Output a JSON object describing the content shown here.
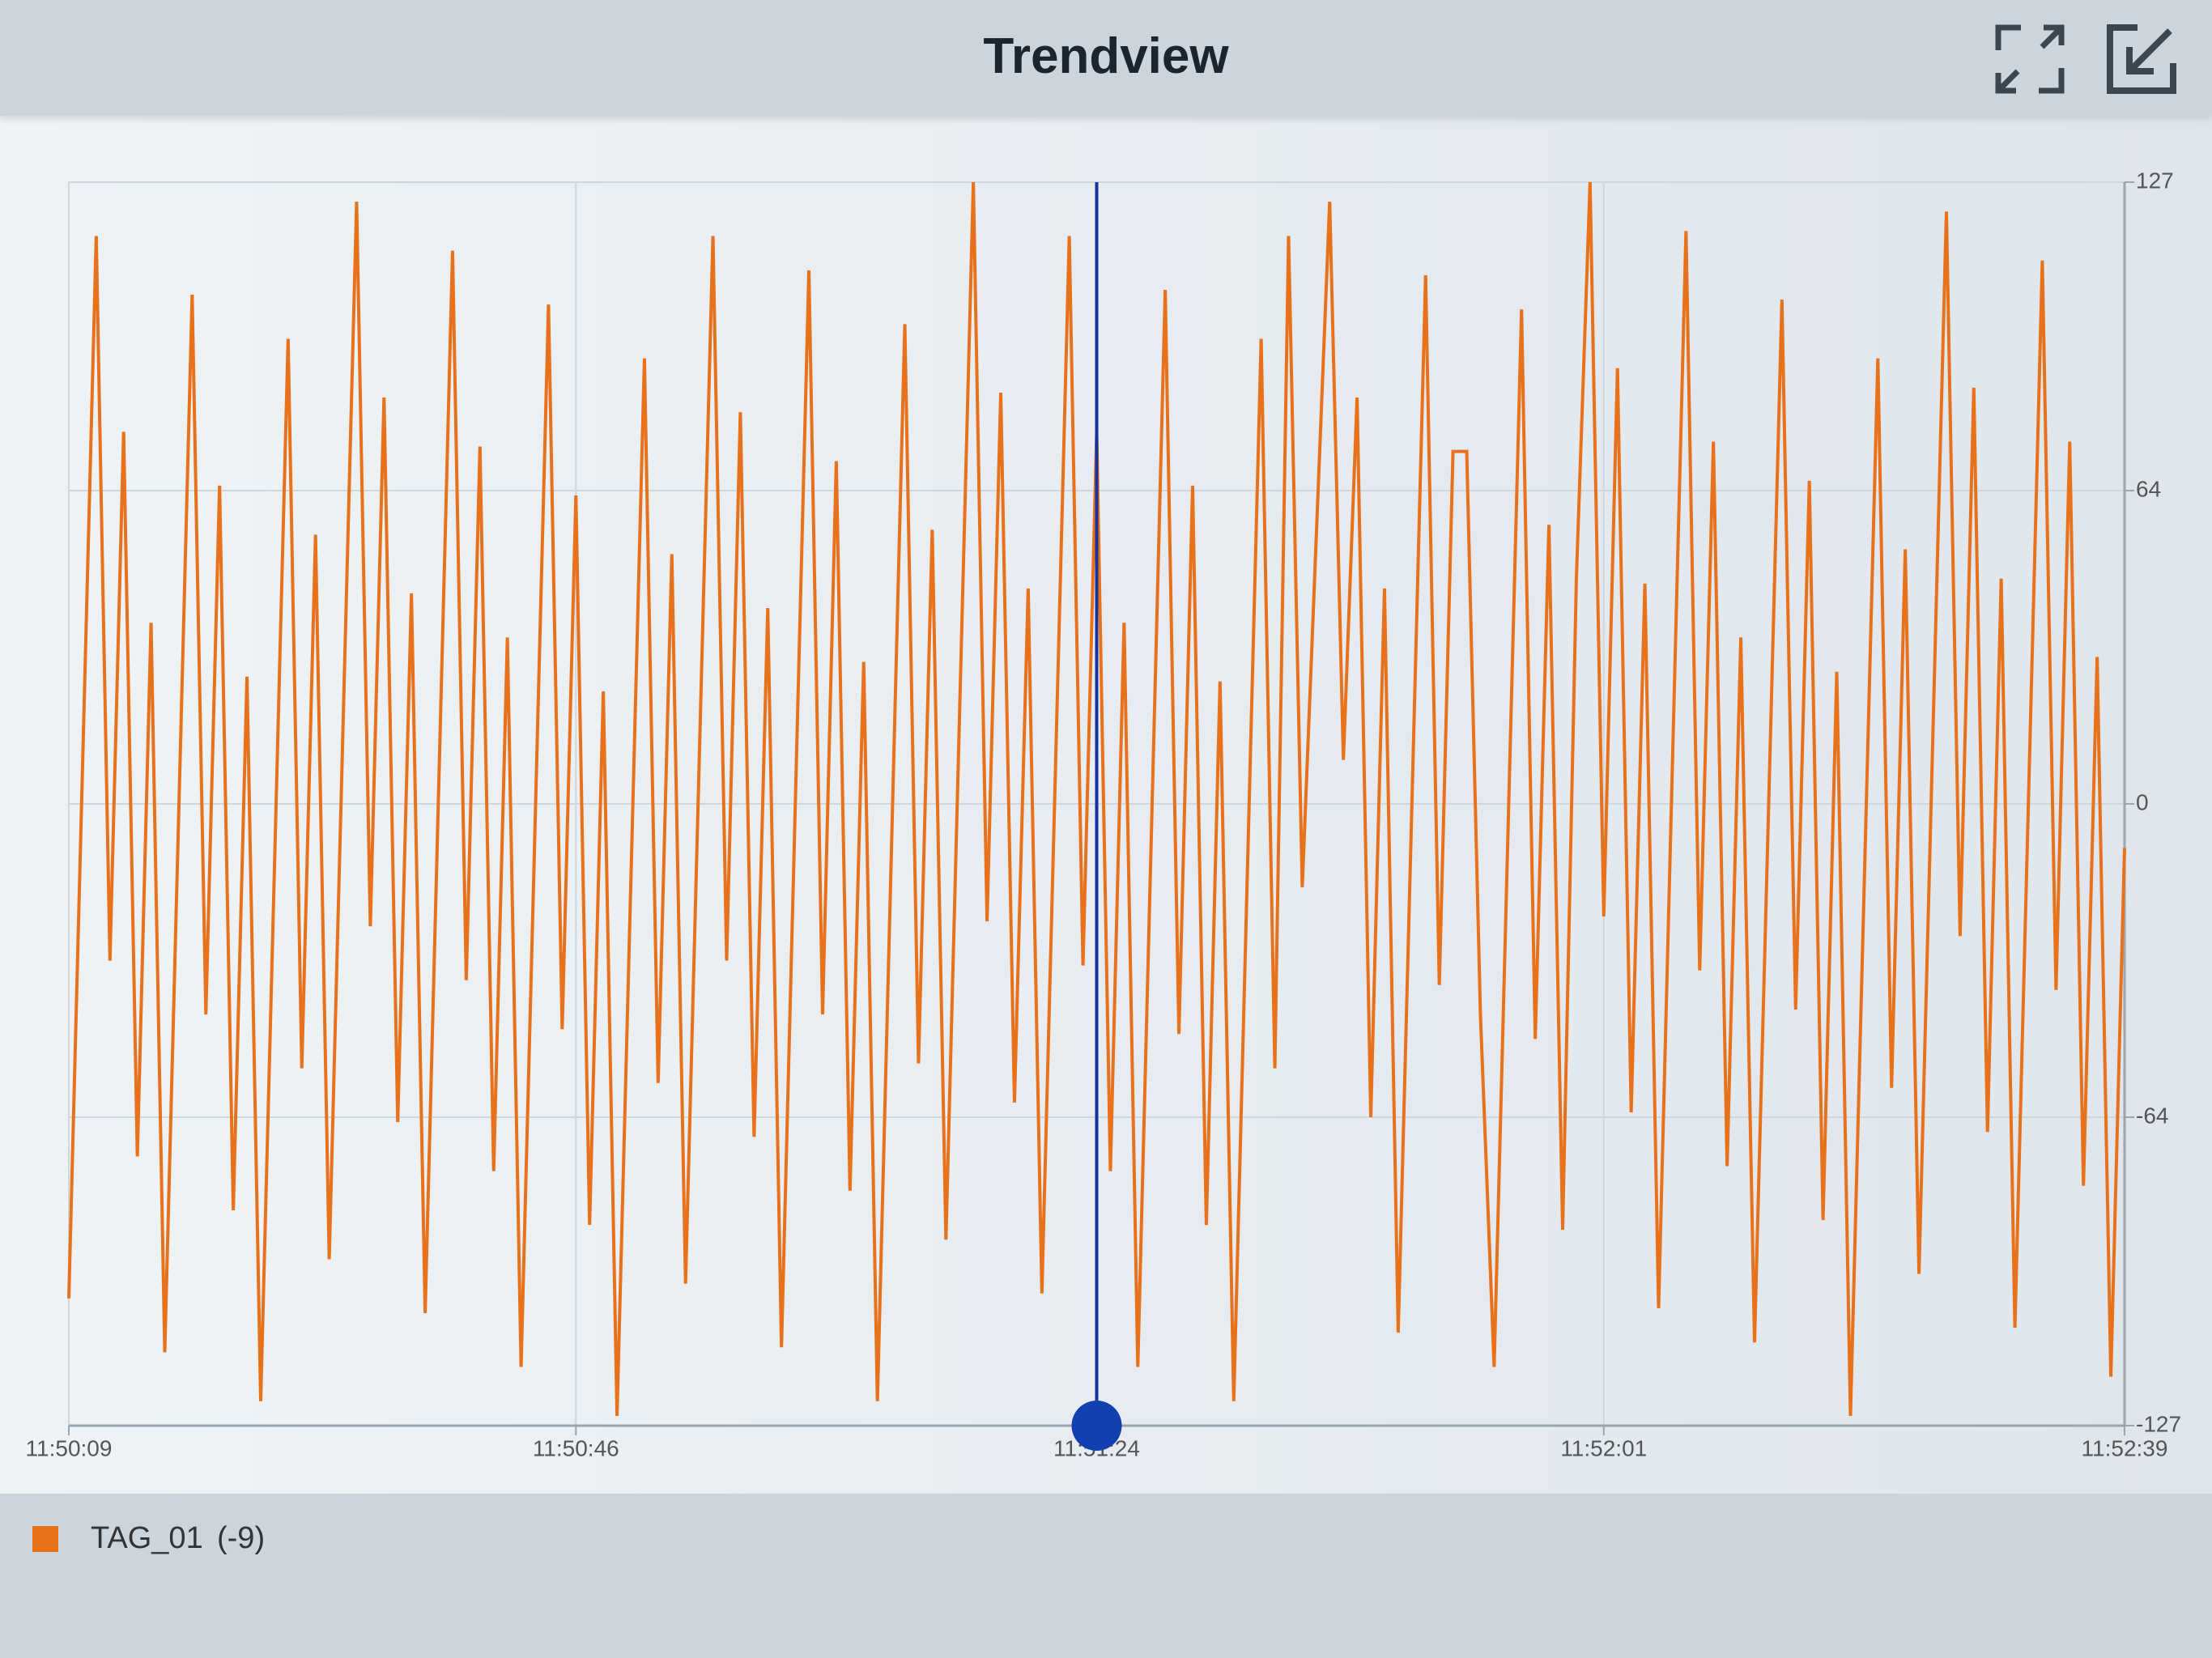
{
  "header": {
    "title": "Trendview"
  },
  "chart_data": {
    "type": "line",
    "x": [
      "11:50:09",
      "11:50:11",
      "11:50:12",
      "11:50:13",
      "11:50:14",
      "11:50:15",
      "11:50:16",
      "11:50:18",
      "11:50:19",
      "11:50:20",
      "11:50:21",
      "11:50:22",
      "11:50:23",
      "11:50:25",
      "11:50:26",
      "11:50:27",
      "11:50:28",
      "11:50:30",
      "11:50:31",
      "11:50:32",
      "11:50:33",
      "11:50:34",
      "11:50:35",
      "11:50:37",
      "11:50:38",
      "11:50:39",
      "11:50:40",
      "11:50:41",
      "11:50:42",
      "11:50:44",
      "11:50:45",
      "11:50:46",
      "11:50:47",
      "11:50:48",
      "11:50:49",
      "11:50:51",
      "11:50:52",
      "11:50:53",
      "11:50:54",
      "11:50:56",
      "11:50:57",
      "11:50:58",
      "11:50:59",
      "11:51:00",
      "11:51:01",
      "11:51:03",
      "11:51:04",
      "11:51:05",
      "11:51:06",
      "11:51:07",
      "11:51:08",
      "11:51:10",
      "11:51:11",
      "11:51:12",
      "11:51:13",
      "11:51:15",
      "11:51:16",
      "11:51:17",
      "11:51:18",
      "11:51:19",
      "11:51:20",
      "11:51:22",
      "11:51:23",
      "11:51:24",
      "11:51:25",
      "11:51:26",
      "11:51:27",
      "11:51:29",
      "11:51:30",
      "11:51:31",
      "11:51:32",
      "11:51:33",
      "11:51:34",
      "11:51:36",
      "11:51:37",
      "11:51:38",
      "11:51:39",
      "11:51:41",
      "11:51:42",
      "11:51:43",
      "11:51:44",
      "11:51:45",
      "11:51:46",
      "11:51:48",
      "11:51:49",
      "11:51:50",
      "11:51:51",
      "11:51:52",
      "11:51:53",
      "11:51:55",
      "11:51:56",
      "11:51:57",
      "11:51:58",
      "11:51:59",
      "11:52:00",
      "11:52:01",
      "11:52:02",
      "11:52:03",
      "11:52:04",
      "11:52:05",
      "11:52:07",
      "11:52:08",
      "11:52:09",
      "11:52:10",
      "11:52:11",
      "11:52:12",
      "11:52:14",
      "11:52:15",
      "11:52:16",
      "11:52:17",
      "11:52:18",
      "11:52:19",
      "11:52:21",
      "11:52:22",
      "11:52:23",
      "11:52:24",
      "11:52:26",
      "11:52:27",
      "11:52:28",
      "11:52:29",
      "11:52:30",
      "11:52:31",
      "11:52:33",
      "11:52:34",
      "11:52:35",
      "11:52:36",
      "11:52:37",
      "11:52:38",
      "11:52:39"
    ],
    "series": [
      {
        "name": "TAG_01",
        "current_label": "(-9)",
        "color": "#e8711c",
        "values": [
          -101,
          116,
          -32,
          76,
          -72,
          37,
          -112,
          104,
          -43,
          65,
          -83,
          26,
          -122,
          95,
          -54,
          55,
          -93,
          123,
          -25,
          83,
          -65,
          43,
          -104,
          113,
          -36,
          73,
          -75,
          34,
          -115,
          102,
          -46,
          63,
          -86,
          23,
          -125,
          91,
          -57,
          51,
          -98,
          116,
          -32,
          80,
          -68,
          40,
          -111,
          109,
          -43,
          70,
          -79,
          29,
          -122,
          98,
          -53,
          56,
          -89,
          127,
          -24,
          84,
          -61,
          44,
          -100,
          116,
          -33,
          76,
          -75,
          37,
          -115,
          105,
          -47,
          65,
          -86,
          25,
          -122,
          95,
          -54,
          116,
          -17,
          123,
          9,
          83,
          -64,
          44,
          -108,
          108,
          -37,
          72,
          72,
          -43,
          -115,
          101,
          -48,
          57,
          -87,
          46,
          127,
          -23,
          89,
          -63,
          45,
          -103,
          117,
          -34,
          74,
          -74,
          34,
          -110,
          103,
          -42,
          66,
          -85,
          27,
          -125,
          91,
          -58,
          52,
          -96,
          121,
          -27,
          85,
          -67,
          46,
          -107,
          111,
          -38,
          74,
          -78,
          30,
          -117,
          -9
        ]
      }
    ],
    "cursor": "11:51:24",
    "xlim": [
      "11:50:09",
      "11:52:39"
    ],
    "xticks": [
      "11:50:09",
      "11:50:46",
      "11:51:24",
      "11:52:01",
      "11:52:39"
    ],
    "ylim": [
      -127,
      127
    ],
    "yticks": [
      127,
      64,
      0,
      -64,
      -127
    ],
    "grid": true
  }
}
